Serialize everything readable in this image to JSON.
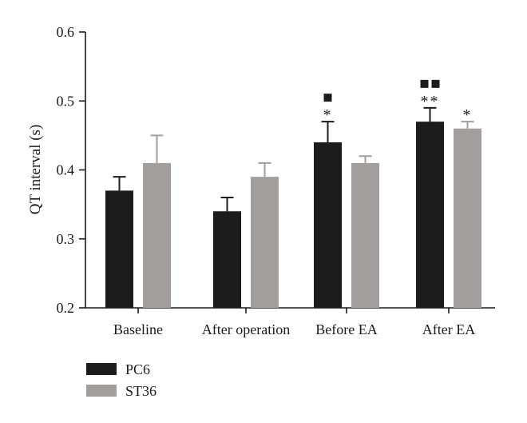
{
  "chart_data": {
    "type": "bar",
    "title": "",
    "xlabel": "",
    "ylabel": "QT interval (s)",
    "ylim": [
      0.2,
      0.6
    ],
    "yticks": [
      "0.2",
      "0.3",
      "0.4",
      "0.5",
      "0.6"
    ],
    "categories": [
      "Baseline",
      "After operation",
      "Before EA",
      "After EA"
    ],
    "series": [
      {
        "name": "PC6",
        "color": "#1c1c1c",
        "values": [
          0.37,
          0.34,
          0.44,
          0.47
        ],
        "errors": [
          0.02,
          0.02,
          0.03,
          0.02
        ]
      },
      {
        "name": "ST36",
        "color": "#a39e9e",
        "values": [
          0.41,
          0.39,
          0.41,
          0.46
        ],
        "errors": [
          0.04,
          0.02,
          0.01,
          0.01
        ]
      }
    ],
    "annotations": [
      {
        "category": "Before EA",
        "series": "PC6",
        "stars": "*",
        "squares": 1
      },
      {
        "category": "After EA",
        "series": "PC6",
        "stars": "**",
        "squares": 2
      },
      {
        "category": "After EA",
        "series": "ST36",
        "stars": "*",
        "squares": 0
      }
    ],
    "legend": "bottom-left",
    "grid": false
  }
}
